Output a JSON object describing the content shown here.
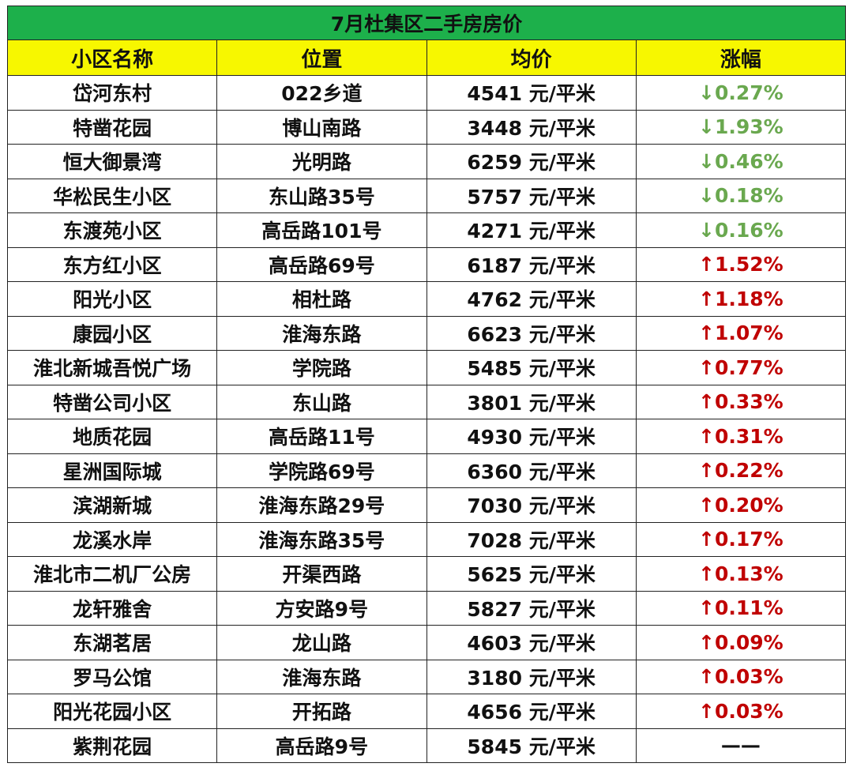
{
  "table": {
    "title": "7月杜集区二手房房价",
    "header": [
      "小区名称",
      "位置",
      "均价",
      "涨幅"
    ],
    "rows": [
      [
        "岱河东村",
        "022乡道",
        "4541 元/平米",
        "↓0.27%"
      ],
      [
        "特凿花园",
        "博山南路",
        "3448 元/平米",
        "↓1.93%"
      ],
      [
        "恒大御景湾",
        "光明路",
        "6259 元/平米",
        "↓0.46%"
      ],
      [
        "华松民生小区",
        "东山路35号",
        "5757 元/平米",
        "↓0.18%"
      ],
      [
        "东渡苑小区",
        "高岳路101号",
        "4271 元/平米",
        "↓0.16%"
      ],
      [
        "东方红小区",
        "高岳路69号",
        "6187 元/平米",
        "↑1.52%"
      ],
      [
        "阳光小区",
        "相杜路",
        "4762 元/平米",
        "↑1.18%"
      ],
      [
        "康园小区",
        "淮海东路",
        "6623 元/平米",
        "↑1.07%"
      ],
      [
        "淮北新城吾悦广场",
        "学院路",
        "5485 元/平米",
        "↑0.77%"
      ],
      [
        "特凿公司小区",
        "东山路",
        "3801 元/平米",
        "↑0.33%"
      ],
      [
        "地质花园",
        "高岳路11号",
        "4930 元/平米",
        "↑0.31%"
      ],
      [
        "星洲国际城",
        "学院路69号",
        "6360 元/平米",
        "↑0.22%"
      ],
      [
        "滨湖新城",
        "淮海东路29号",
        "7030 元/平米",
        "↑0.20%"
      ],
      [
        "龙溪水岸",
        "淮海东路35号",
        "7028 元/平米",
        "↑0.17%"
      ],
      [
        "淮北市二机厂公房",
        "开渠西路",
        "5625 元/平米",
        "↑0.13%"
      ],
      [
        "龙轩雅舍",
        "方安路9号",
        "5827 元/平米",
        "↑0.11%"
      ],
      [
        "东湖茗居",
        "龙山路",
        "4603 元/平米",
        "↑0.09%"
      ],
      [
        "罗马公馆",
        "淮海东路",
        "3180 元/平米",
        "↑0.03%"
      ],
      [
        "阳光花园小区",
        "开拓路",
        "4656 元/平米",
        "↑0.03%"
      ],
      [
        "紫荆花园",
        "高岳路9号",
        "5845 元/平米",
        "——"
      ]
    ],
    "change_colors": [
      "#6aa84f",
      "#6aa84f",
      "#6aa84f",
      "#6aa84f",
      "#6aa84f",
      "#c00000",
      "#c00000",
      "#c00000",
      "#c00000",
      "#c00000",
      "#c00000",
      "#c00000",
      "#c00000",
      "#c00000",
      "#c00000",
      "#c00000",
      "#c00000",
      "#c00000",
      "#c00000",
      "#111111"
    ]
  }
}
